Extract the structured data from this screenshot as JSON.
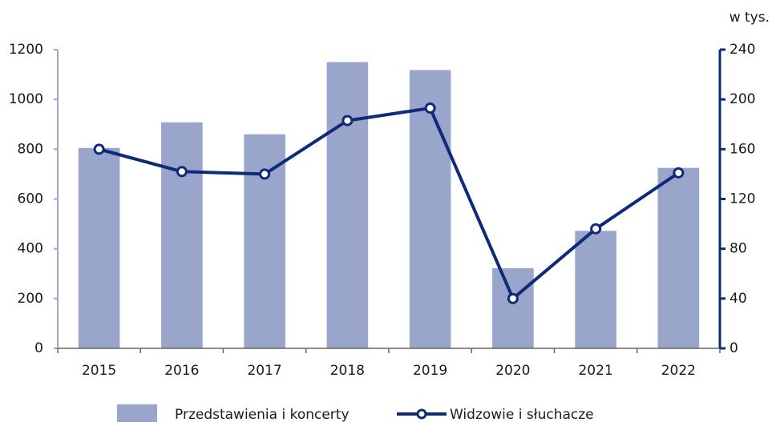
{
  "chart_data": {
    "type": "combo",
    "y2_label": "w tys.",
    "categories": [
      "2015",
      "2016",
      "2017",
      "2018",
      "2019",
      "2020",
      "2021",
      "2022"
    ],
    "series": [
      {
        "name": "Przedstawienia i koncerty",
        "type": "bar",
        "color": "#9aa5cb",
        "values": [
          805,
          908,
          860,
          1150,
          1118,
          322,
          472,
          725
        ]
      },
      {
        "name": "Widzowie i słuchacze",
        "type": "line",
        "axis": "y2",
        "color": "#0f2a78",
        "values": [
          160,
          142,
          140,
          183,
          193,
          40,
          96,
          141
        ]
      }
    ],
    "ylim": [
      0,
      1200
    ],
    "yticks": [
      0,
      200,
      400,
      600,
      800,
      1000,
      1200
    ],
    "y2lim": [
      0,
      240
    ],
    "y2ticks": [
      0,
      40,
      80,
      120,
      160,
      200,
      240
    ],
    "grid": false,
    "legend": "bottom"
  }
}
